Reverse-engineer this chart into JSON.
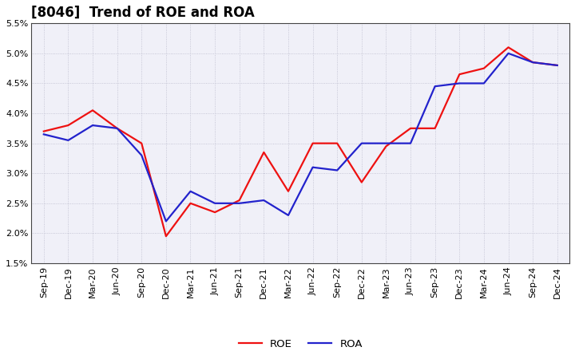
{
  "title": "[8046]  Trend of ROE and ROA",
  "labels": [
    "Sep-19",
    "Dec-19",
    "Mar-20",
    "Jun-20",
    "Sep-20",
    "Dec-20",
    "Mar-21",
    "Jun-21",
    "Sep-21",
    "Dec-21",
    "Mar-22",
    "Jun-22",
    "Sep-22",
    "Dec-22",
    "Mar-23",
    "Jun-23",
    "Sep-23",
    "Dec-23",
    "Mar-24",
    "Jun-24",
    "Sep-24",
    "Dec-24"
  ],
  "roe": [
    3.7,
    3.8,
    4.05,
    3.75,
    3.5,
    1.95,
    2.5,
    2.35,
    2.55,
    3.35,
    2.7,
    3.5,
    3.5,
    2.85,
    3.45,
    3.75,
    3.75,
    4.65,
    4.75,
    5.1,
    4.85,
    4.8
  ],
  "roa": [
    3.65,
    3.55,
    3.8,
    3.75,
    3.3,
    2.2,
    2.7,
    2.5,
    2.5,
    2.55,
    2.3,
    3.1,
    3.05,
    3.5,
    3.5,
    3.5,
    4.45,
    4.5,
    4.5,
    5.0,
    4.85,
    4.8
  ],
  "roe_color": "#ee1111",
  "roa_color": "#2222cc",
  "ylim": [
    1.5,
    5.5
  ],
  "yticks": [
    1.5,
    2.0,
    2.5,
    3.0,
    3.5,
    4.0,
    4.5,
    5.0,
    5.5
  ],
  "ytick_labels": [
    "1.5%",
    "2.0%",
    "2.5%",
    "3.0%",
    "3.5%",
    "4.0%",
    "4.5%",
    "5.0%",
    "5.5%"
  ],
  "grid_color": "#bbbbcc",
  "bg_color": "#ffffff",
  "plot_bg_color": "#f0f0f8",
  "line_width": 1.6,
  "title_fontsize": 12,
  "tick_fontsize": 8,
  "legend_fontsize": 9.5
}
